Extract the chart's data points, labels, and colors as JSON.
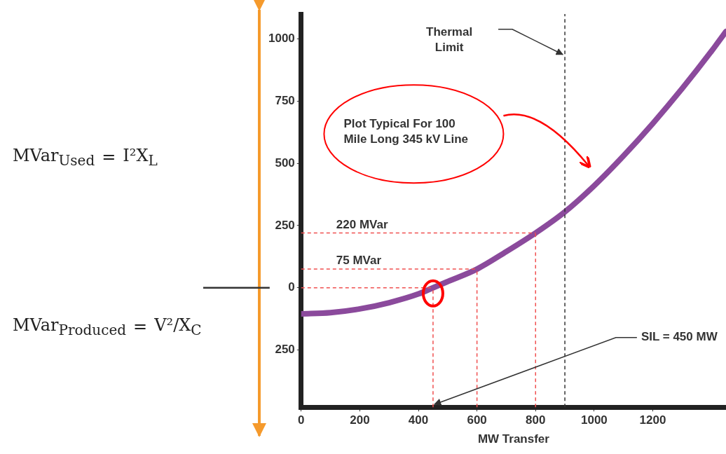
{
  "chart_data": {
    "type": "line",
    "xlabel": "MW Transfer",
    "x": [
      0,
      100,
      200,
      300,
      400,
      450,
      500,
      600,
      700,
      800,
      900,
      1000,
      1100,
      1200,
      1300,
      1400,
      1450
    ],
    "series": [
      {
        "color": "#8b4a9c",
        "values": [
          -105,
          -100,
          -85,
          -60,
          -25,
          0,
          25,
          75,
          145,
          220,
          305,
          410,
          530,
          660,
          800,
          950,
          1030
        ]
      }
    ],
    "xlim": [
      0,
      1450
    ],
    "ylim": [
      -480,
      1100
    ],
    "xticks": [
      0,
      200,
      400,
      600,
      800,
      1000,
      1200
    ],
    "yticks": [
      {
        "value": -250,
        "label": "250"
      },
      0,
      250,
      500,
      750,
      1000
    ],
    "grid": false,
    "legend": false,
    "marker": "none",
    "line_style": "solid",
    "ref_lines": [
      {
        "axis": "x",
        "value": 900,
        "label": "Thermal Limit",
        "color": "#333333",
        "line_style": "dashed"
      },
      {
        "axis": "y",
        "value": 220,
        "label": "220 MVar",
        "color": "#f05050",
        "line_style": "dashed"
      },
      {
        "axis": "y",
        "value": 75,
        "label": "75 MVar",
        "color": "#f05050",
        "line_style": "dashed"
      },
      {
        "axis": "y",
        "value": 0,
        "color": "#f05050",
        "line_style": "dashed"
      },
      {
        "axis": "x",
        "value": 450,
        "color": "#f05050",
        "line_style": "dashed"
      },
      {
        "axis": "x",
        "value": 600,
        "color": "#f05050",
        "line_style": "dashed"
      },
      {
        "axis": "x",
        "value": 800,
        "color": "#f05050",
        "line_style": "dashed"
      }
    ],
    "annotations": [
      "Plot Typical For 100 Mile Long 345 kV Line",
      {
        "text": "SIL = 450 MW",
        "x": 450,
        "y": -480
      },
      "MVar$_{Used}$ = I²X$_{L}$",
      "MVar$_{Produced}$ = V²/X$_{C}$"
    ]
  }
}
